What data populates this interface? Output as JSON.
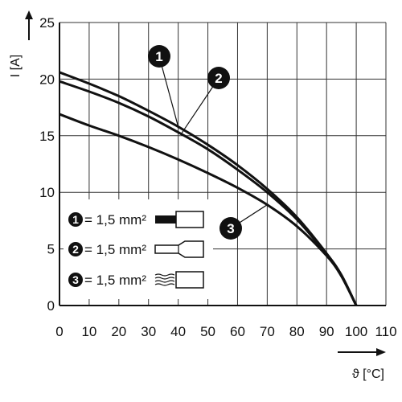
{
  "chart_data": {
    "type": "line",
    "xlabel": "ϑ [°C]",
    "ylabel": "I [A]",
    "xlim": [
      0,
      110
    ],
    "ylim": [
      0,
      25
    ],
    "x_ticks": [
      "0",
      "10",
      "20",
      "30",
      "40",
      "50",
      "60",
      "70",
      "80",
      "90",
      "100",
      "110"
    ],
    "y_ticks": [
      "0",
      "5",
      "10",
      "15",
      "20",
      "25"
    ],
    "grid": true,
    "series": [
      {
        "name": "1",
        "x": [
          0,
          10,
          20,
          30,
          40,
          50,
          60,
          70,
          80,
          90,
          95,
          100
        ],
        "y": [
          20.6,
          19.6,
          18.5,
          17.2,
          15.8,
          14.2,
          12.4,
          10.3,
          7.8,
          4.6,
          2.7,
          0
        ]
      },
      {
        "name": "2",
        "x": [
          0,
          10,
          20,
          30,
          40,
          50,
          60,
          70,
          80,
          90,
          95,
          100
        ],
        "y": [
          19.8,
          18.9,
          17.9,
          16.7,
          15.3,
          13.8,
          12.0,
          10.0,
          7.6,
          4.5,
          2.6,
          0
        ]
      },
      {
        "name": "3",
        "x": [
          0,
          10,
          20,
          30,
          40,
          50,
          60,
          70,
          80,
          90,
          95,
          100
        ],
        "y": [
          16.9,
          15.9,
          15.0,
          14.0,
          12.9,
          11.7,
          10.4,
          8.9,
          7.0,
          4.4,
          2.6,
          0
        ]
      }
    ],
    "legend": {
      "placement": "bottom-left",
      "entries": [
        {
          "number": "1",
          "text": "= 1,5 mm²",
          "icon": "wire-solid-icon"
        },
        {
          "number": "2",
          "text": "= 1,5 mm²",
          "icon": "wire-ferrule-icon"
        },
        {
          "number": "3",
          "text": "= 1,5 mm²",
          "icon": "wire-stranded-icon"
        }
      ]
    },
    "callouts": [
      "1",
      "2",
      "3"
    ]
  }
}
